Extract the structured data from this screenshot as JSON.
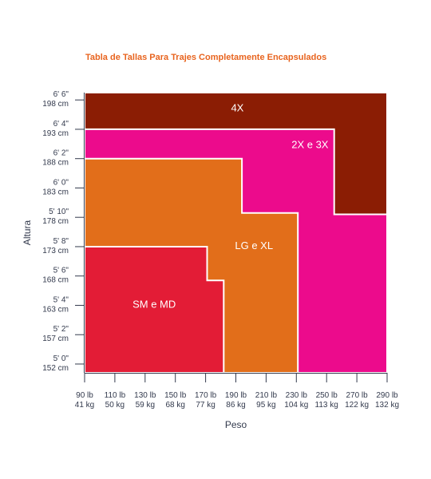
{
  "chart_data": {
    "type": "size-chart",
    "title": "Tabla de Tallas Para Trajes Completamente Encapsulados",
    "xlabel": "Peso",
    "ylabel": "Altura",
    "x_ticks": [
      {
        "value": 90,
        "label_lb": "90 lb",
        "label_kg": "41 kg"
      },
      {
        "value": 110,
        "label_lb": "110 lb",
        "label_kg": "50 kg"
      },
      {
        "value": 130,
        "label_lb": "130 lb",
        "label_kg": "59 kg"
      },
      {
        "value": 150,
        "label_lb": "150 lb",
        "label_kg": "68 kg"
      },
      {
        "value": 170,
        "label_lb": "170 lb",
        "label_kg": "77 kg"
      },
      {
        "value": 190,
        "label_lb": "190 lb",
        "label_kg": "86 kg"
      },
      {
        "value": 210,
        "label_lb": "210 lb",
        "label_kg": "95 kg"
      },
      {
        "value": 230,
        "label_lb": "230 lb",
        "label_kg": "104 kg"
      },
      {
        "value": 250,
        "label_lb": "250 lb",
        "label_kg": "113 kg"
      },
      {
        "value": 270,
        "label_lb": "270 lb",
        "label_kg": "122 kg"
      },
      {
        "value": 290,
        "label_lb": "290 lb",
        "label_kg": "132 kg"
      }
    ],
    "y_ticks": [
      {
        "value": 60,
        "label_ft": "5' 0\"",
        "label_cm": "152 cm"
      },
      {
        "value": 62,
        "label_ft": "5' 2\"",
        "label_cm": "157 cm"
      },
      {
        "value": 64,
        "label_ft": "5' 4\"",
        "label_cm": "163 cm"
      },
      {
        "value": 66,
        "label_ft": "5' 6\"",
        "label_cm": "168 cm"
      },
      {
        "value": 68,
        "label_ft": "5' 8\"",
        "label_cm": "173 cm"
      },
      {
        "value": 70,
        "label_ft": "5' 10\"",
        "label_cm": "178 cm"
      },
      {
        "value": 72,
        "label_ft": "6' 0\"",
        "label_cm": "183 cm"
      },
      {
        "value": 74,
        "label_ft": "6' 2\"",
        "label_cm": "188 cm"
      },
      {
        "value": 76,
        "label_ft": "6' 4\"",
        "label_cm": "193 cm"
      },
      {
        "value": 78,
        "label_ft": "6' 6\"",
        "label_cm": "198 cm"
      }
    ],
    "xlim": [
      90,
      290
    ],
    "ylim": [
      59.4,
      78.5
    ],
    "regions": [
      {
        "name": "4X",
        "color": "#8b1d04",
        "polygon": [
          [
            90,
            78.5
          ],
          [
            290,
            78.5
          ],
          [
            290,
            71.8
          ],
          [
            290,
            59.4
          ],
          [
            90,
            59.4
          ]
        ]
      },
      {
        "name": "2X e 3X",
        "color": "#ec0b8c",
        "polygon": [
          [
            90,
            76
          ],
          [
            255,
            76
          ],
          [
            255,
            70.2
          ],
          [
            290,
            70.2
          ],
          [
            290,
            59.4
          ],
          [
            90,
            59.4
          ]
        ]
      },
      {
        "name": "LG e XL",
        "color": "#e26e1a",
        "polygon": [
          [
            90,
            74
          ],
          [
            194,
            74
          ],
          [
            194,
            70.3
          ],
          [
            231,
            70.3
          ],
          [
            231,
            59.4
          ],
          [
            90,
            59.4
          ]
        ]
      },
      {
        "name": "SM e MD",
        "color": "#e31c36",
        "polygon": [
          [
            90,
            68
          ],
          [
            171,
            68
          ],
          [
            171,
            65.7
          ],
          [
            182,
            65.7
          ],
          [
            182,
            59.4
          ],
          [
            90,
            59.4
          ]
        ]
      }
    ],
    "region_labels": [
      {
        "text": "4X",
        "x": 191,
        "y": 77.5
      },
      {
        "text": "2X e 3X",
        "x": 239,
        "y": 75
      },
      {
        "text": "LG e XL",
        "x": 202,
        "y": 68.1
      },
      {
        "text": "SM e MD",
        "x": 136,
        "y": 64.1
      }
    ],
    "colors": {
      "axis": "#333a4d",
      "title": "#e8641f",
      "background": "#ffffff"
    }
  }
}
